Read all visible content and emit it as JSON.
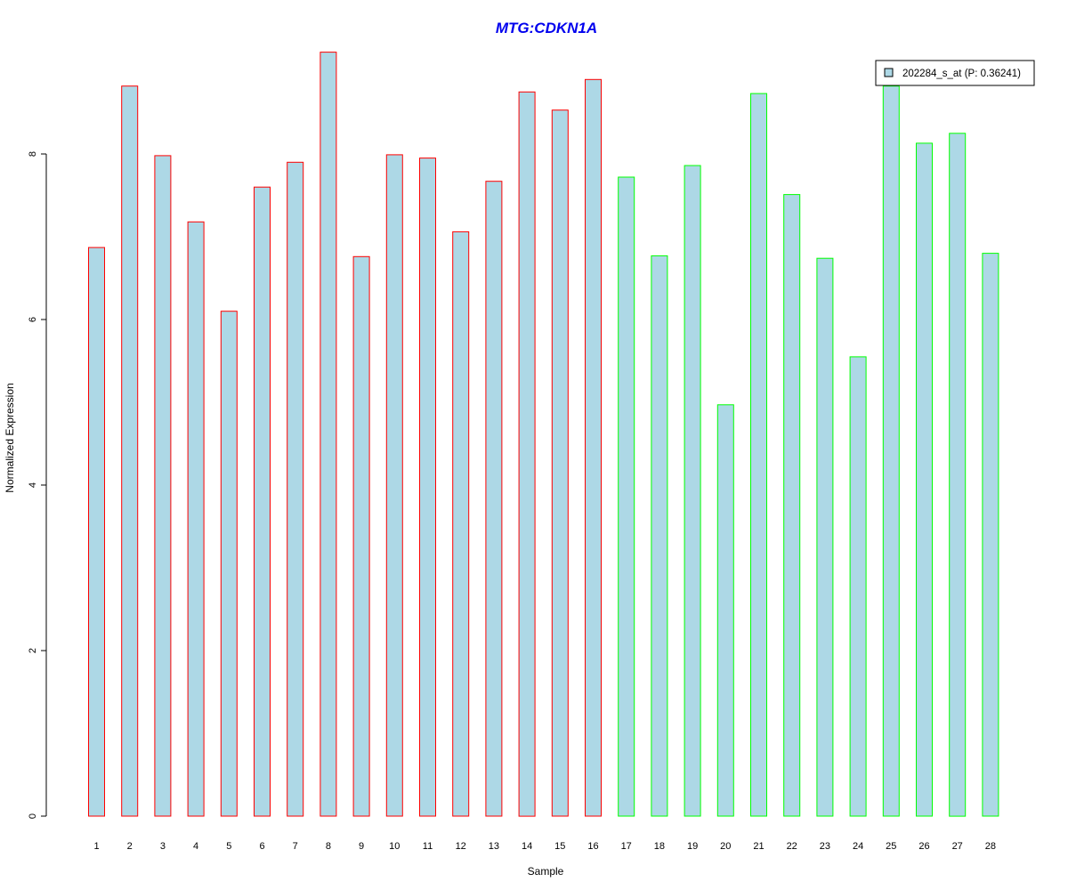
{
  "chart_data": {
    "type": "bar",
    "title": "MTG:CDKN1A",
    "xlabel": "Sample",
    "ylabel": "Normalized Expression",
    "ylim": [
      0,
      9.3
    ],
    "yticks": [
      0,
      2,
      4,
      6,
      8
    ],
    "categories": [
      "1",
      "2",
      "3",
      "4",
      "5",
      "6",
      "7",
      "8",
      "9",
      "10",
      "11",
      "12",
      "13",
      "14",
      "15",
      "16",
      "17",
      "18",
      "19",
      "20",
      "21",
      "22",
      "23",
      "24",
      "25",
      "26",
      "27",
      "28"
    ],
    "series": [
      {
        "name": "202284_s_at (P: 0.36241)",
        "values": [
          6.87,
          8.82,
          7.98,
          7.18,
          6.1,
          7.6,
          7.9,
          9.23,
          6.76,
          7.99,
          7.95,
          7.06,
          7.67,
          8.75,
          8.53,
          8.9,
          7.72,
          6.77,
          7.86,
          4.97,
          8.73,
          7.51,
          6.74,
          5.55,
          8.82,
          8.13,
          8.25,
          6.8
        ]
      }
    ],
    "bar_fill": "#add8e6",
    "group_colors": [
      "#ff0000",
      "#00ff00"
    ],
    "group_sizes": [
      16,
      12
    ],
    "title_color": "#0000ee",
    "legend": {
      "label": "202284_s_at (P: 0.36241)",
      "position": "top-right"
    },
    "grid": false
  }
}
